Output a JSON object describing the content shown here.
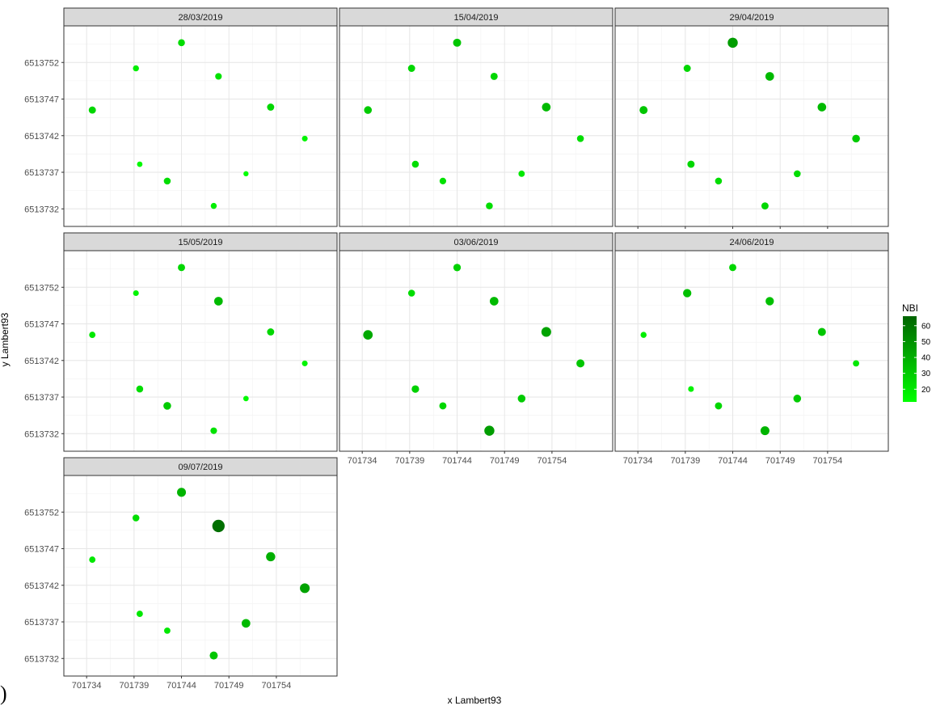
{
  "corner_mark": ")",
  "chart_data": {
    "type": "scatter",
    "facet_rows": 3,
    "facet_cols": 3,
    "xlabel": "x Lambert93",
    "ylabel": "y Lambert93",
    "xlim": [
      701731.6,
      701760.4
    ],
    "ylim": [
      6513729.6,
      6513757.0
    ],
    "x_ticks": [
      701734,
      701739,
      701744,
      701749,
      701754
    ],
    "y_ticks": [
      6513732,
      6513737,
      6513742,
      6513747,
      6513752
    ],
    "x_tick_labels": [
      "701734",
      "701739",
      "701744",
      "701749",
      "701754"
    ],
    "y_tick_labels": [
      "6513732",
      "6513737",
      "6513742",
      "6513747",
      "6513752"
    ],
    "grid": true,
    "legend": {
      "title": "NBI",
      "position": "right",
      "ticks": [
        20,
        30,
        40,
        50,
        60
      ],
      "tick_labels": [
        "20",
        "30",
        "40",
        "50",
        "60"
      ],
      "range": [
        12,
        66
      ],
      "low_color": "#00ff00",
      "high_color": "#006400"
    },
    "points": {
      "x": [
        701744.0,
        701739.2,
        701747.9,
        701734.6,
        701753.4,
        701757.0,
        701739.6,
        701742.5,
        701750.8,
        701747.4
      ],
      "y": [
        6513754.7,
        6513751.2,
        6513750.1,
        6513745.5,
        6513745.9,
        6513741.6,
        6513738.1,
        6513735.8,
        6513736.8,
        6513732.4
      ]
    },
    "panels": [
      {
        "label": "28/03/2019",
        "show_x_ticks": false,
        "show_y_ticks": true,
        "nbi": [
          24,
          18,
          22,
          26,
          26,
          16,
          14,
          24,
          12,
          18
        ]
      },
      {
        "label": "15/04/2019",
        "show_x_ticks": false,
        "show_y_ticks": false,
        "nbi": [
          32,
          26,
          26,
          30,
          36,
          24,
          24,
          22,
          20,
          24
        ]
      },
      {
        "label": "29/04/2019",
        "show_x_ticks": true,
        "show_y_ticks": false,
        "nbi": [
          46,
          26,
          36,
          32,
          36,
          30,
          26,
          24,
          24,
          26
        ]
      },
      {
        "label": "15/05/2019",
        "show_x_ticks": false,
        "show_y_ticks": true,
        "nbi": [
          26,
          16,
          36,
          20,
          26,
          16,
          24,
          30,
          14,
          22
        ]
      },
      {
        "label": "03/06/2019",
        "show_x_ticks": true,
        "show_y_ticks": false,
        "nbi": [
          28,
          24,
          36,
          42,
          44,
          32,
          28,
          26,
          30,
          46
        ]
      },
      {
        "label": "24/06/2019",
        "show_x_ticks": true,
        "show_y_ticks": false,
        "nbi": [
          26,
          34,
          34,
          18,
          32,
          20,
          16,
          26,
          30,
          38
        ]
      },
      {
        "label": "09/07/2019",
        "show_x_ticks": true,
        "show_y_ticks": true,
        "nbi": [
          38,
          24,
          62,
          20,
          40,
          44,
          20,
          20,
          36,
          32
        ]
      }
    ]
  }
}
